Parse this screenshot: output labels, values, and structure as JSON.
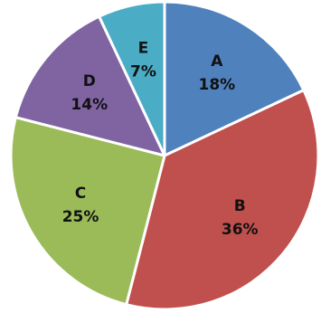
{
  "chart_data": {
    "type": "pie",
    "start_angle_deg": 0,
    "direction": "clockwise",
    "slices": [
      {
        "label": "A",
        "value": 18,
        "value_text": "18%",
        "color": "#4f81bd"
      },
      {
        "label": "B",
        "value": 36,
        "value_text": "36%",
        "color": "#c0504d"
      },
      {
        "label": "C",
        "value": 25,
        "value_text": "25%",
        "color": "#9bbb59"
      },
      {
        "label": "D",
        "value": 14,
        "value_text": "14%",
        "color": "#8064a2"
      },
      {
        "label": "E",
        "value": 7,
        "value_text": "7%",
        "color": "#4bacc6"
      }
    ],
    "title": "",
    "legend": "none"
  }
}
